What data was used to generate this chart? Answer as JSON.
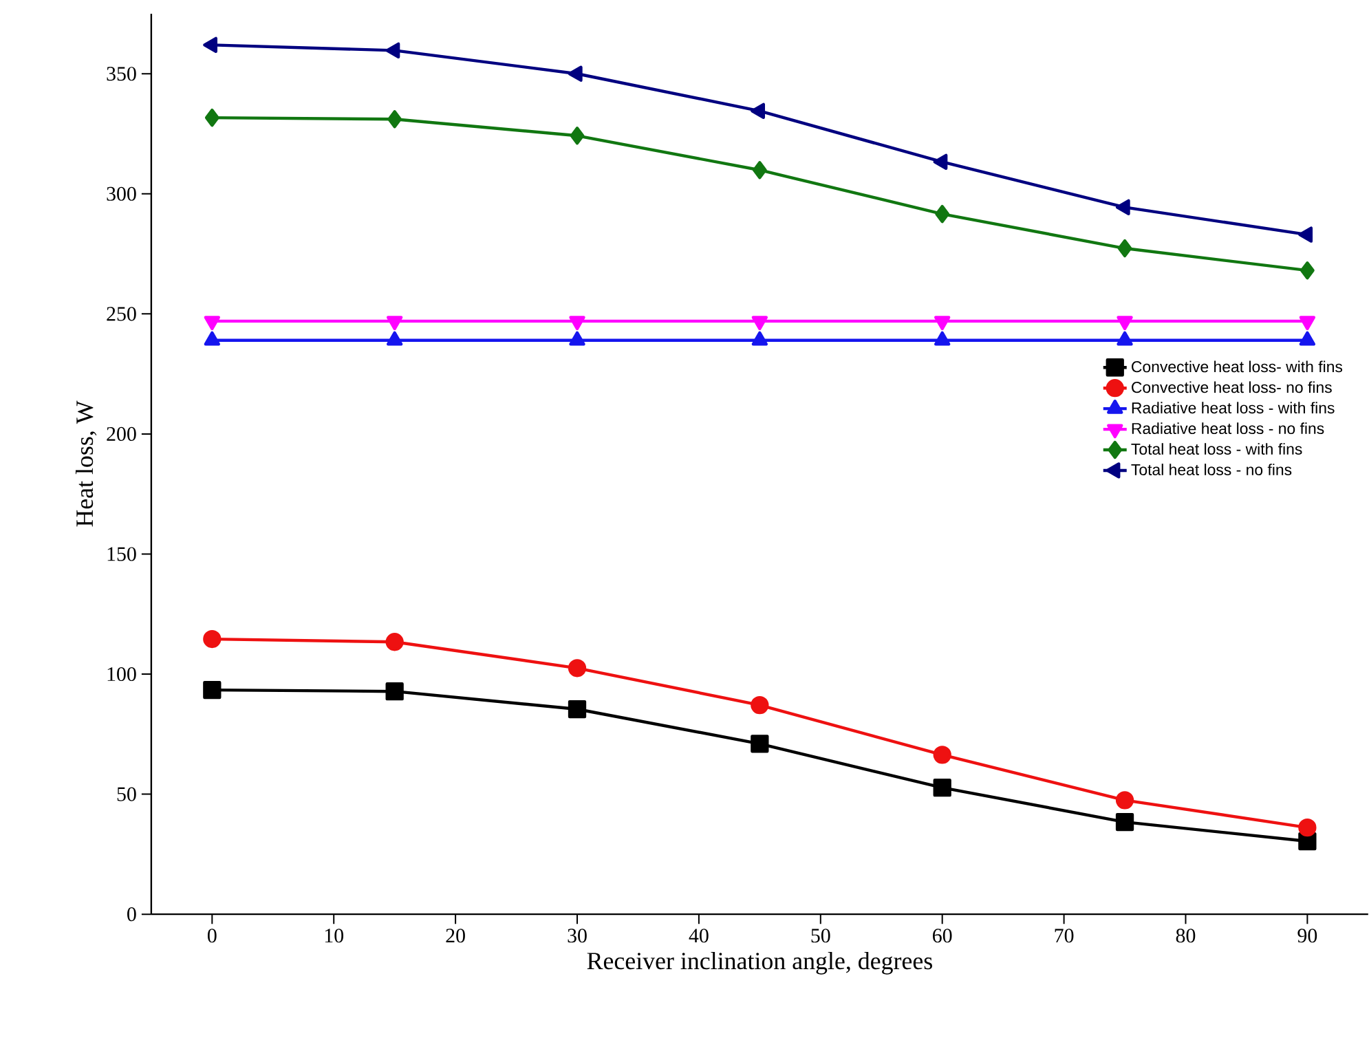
{
  "chart_data": {
    "type": "line",
    "xlabel": "Receiver inclination angle, degrees",
    "ylabel": "Heat loss, W",
    "x": [
      0,
      15,
      30,
      45,
      60,
      75,
      90
    ],
    "xlim": [
      -5,
      95
    ],
    "xticks": [
      0,
      10,
      20,
      30,
      40,
      50,
      60,
      70,
      80,
      90
    ],
    "ylim": [
      0,
      375
    ],
    "yticks": [
      0,
      50,
      100,
      150,
      200,
      250,
      300,
      350
    ],
    "grid": false,
    "legend": "right",
    "line_style": "solid",
    "series": [
      {
        "name": "Convective heat loss- with fins",
        "color": "#000000",
        "marker": "square",
        "values": [
          93.4,
          92.8,
          85.4,
          71.0,
          52.7,
          38.4,
          30.4
        ]
      },
      {
        "name": "Convective heat loss- no fins",
        "color": "#ee1111",
        "marker": "circle",
        "values": [
          114.6,
          113.4,
          102.5,
          87.1,
          66.4,
          47.5,
          36.1
        ]
      },
      {
        "name": "Radiative heat loss - with fins",
        "color": "#1515ee",
        "marker": "triangle",
        "values": [
          239,
          239,
          239,
          239,
          239,
          239,
          239
        ]
      },
      {
        "name": "Radiative heat loss - no fins",
        "color": "#ff00ff",
        "marker": "triangle",
        "values": [
          247,
          247,
          247,
          247,
          247,
          247,
          247
        ]
      },
      {
        "name": "Total heat loss - with fins",
        "color": "#117711",
        "marker": "diamond",
        "values": [
          331.7,
          331.1,
          324.2,
          309.9,
          291.6,
          277.3,
          268.1
        ]
      },
      {
        "name": "Total heat loss - no fins",
        "color": "#000080",
        "marker": "triangle",
        "values": [
          362.0,
          359.7,
          350.0,
          334.5,
          313.3,
          294.4,
          283.0
        ]
      }
    ]
  }
}
